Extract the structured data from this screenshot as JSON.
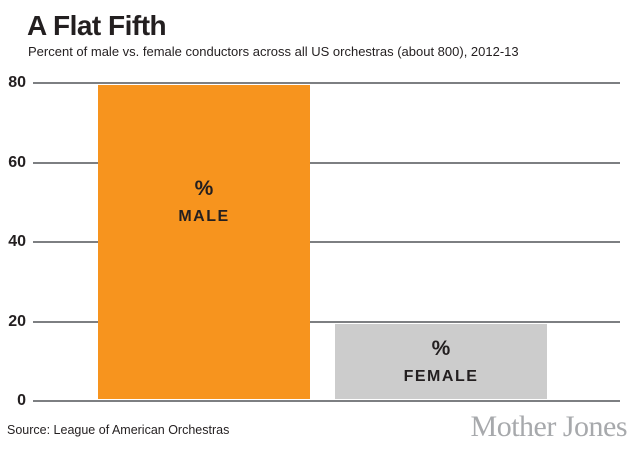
{
  "title": "A Flat Fifth",
  "subtitle": "Percent of male vs. female conductors across all US orchestras (about 800), 2012-13",
  "source": "Source: League of American Orchestras",
  "logo_text": "Mother Jones",
  "colors": {
    "male_bar": "#F7941E",
    "female_bar": "#CCCCCC",
    "gridline": "#7D7F82",
    "text": "#231F20",
    "logo": "#A7A9AC"
  },
  "chart_data": {
    "type": "bar",
    "title": "A Flat Fifth",
    "subtitle": "Percent of male vs. female conductors across all US orchestras (about 800), 2012-13",
    "categories": [
      "MALE",
      "FEMALE"
    ],
    "values": [
      80,
      20
    ],
    "unit": "percent",
    "bars": [
      {
        "label": "MALE",
        "symbol": "%",
        "value": 80,
        "color": "#F7941E"
      },
      {
        "label": "FEMALE",
        "symbol": "%",
        "value": 20,
        "color": "#CCCCCC"
      }
    ],
    "yticks": [
      "80",
      "60",
      "40",
      "20",
      "0"
    ],
    "ylim": [
      0,
      80
    ],
    "xlabel": "",
    "ylabel": "",
    "grid": "horizontal",
    "legend": "none",
    "source": "Source: League of American Orchestras",
    "credit": "Mother Jones"
  }
}
